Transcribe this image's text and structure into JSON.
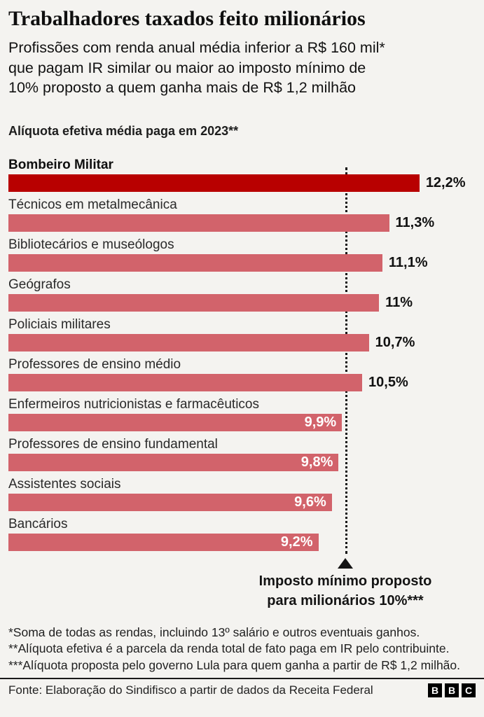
{
  "header": {
    "title": "Trabalhadores taxados feito milionários",
    "subtitle_lines": [
      "Profissões com renda anual média inferior a R$ 160 mil*",
      "que pagam IR similar ou maior ao imposto mínimo de",
      "10% proposto a quem ganha mais de R$ 1,2 milhão"
    ]
  },
  "chart_data": {
    "type": "bar",
    "orientation": "horizontal",
    "title": "Alíquota efetiva média paga em 2023**",
    "categories": [
      "Bombeiro Militar",
      "Técnicos em metalmecânica",
      "Bibliotecários e museólogos",
      "Geógrafos",
      "Policiais militares",
      "Professores de ensino médio",
      "Enfermeiros nutricionistas e farmacêuticos",
      "Professores de ensino fundamental",
      "Assistentes sociais",
      "Bancários"
    ],
    "values": [
      12.2,
      11.3,
      11.1,
      11,
      10.7,
      10.5,
      9.9,
      9.8,
      9.6,
      9.2
    ],
    "value_labels": [
      "12,2%",
      "11,3%",
      "11,1%",
      "11%",
      "10,7%",
      "10,5%",
      "9,9%",
      "9,8%",
      "9,6%",
      "9,2%"
    ],
    "unit": "%",
    "xlim": [
      0,
      13.6
    ],
    "grid": false,
    "highlight_index": 0,
    "colors": {
      "highlight": "#b80000",
      "default": "#d2636b"
    },
    "reference_line": {
      "value": 10,
      "style": "dotted",
      "label_line1": "Imposto mínimo proposto",
      "label_line2": "para milionários 10%***"
    }
  },
  "footnote": "*Soma de todas as rendas, incluindo 13º salário e outros eventuais ganhos. **Alíquota efetiva é a parcela da renda total de fato paga em IR pelo contribuinte. ***Alíquota proposta pelo governo Lula para quem ganha a partir de R$ 1,2 milhão.",
  "footer": {
    "source": "Fonte: Elaboração do Sindifisco a partir de dados da Receita Federal",
    "logo_letters": [
      "B",
      "B",
      "C"
    ]
  }
}
